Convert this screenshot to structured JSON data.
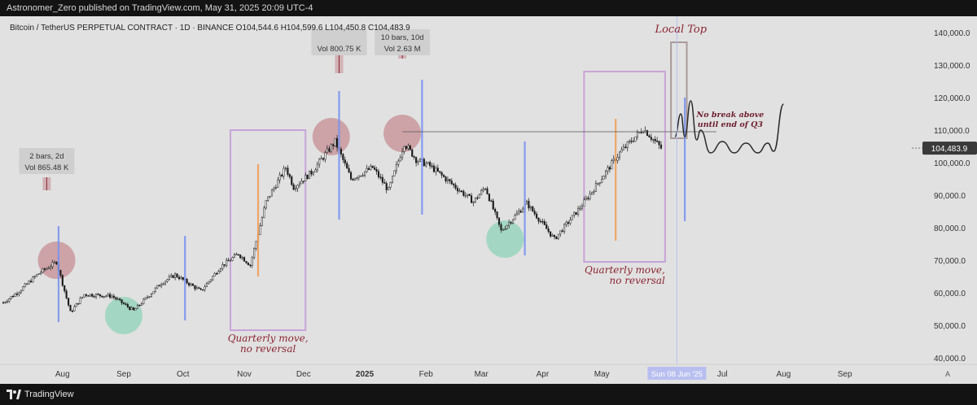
{
  "header": {
    "published": "Astronomer_Zero published on TradingView.com, May 31, 2025 20:09 UTC-4"
  },
  "footer": {
    "brand": "TradingView"
  },
  "chart_data": {
    "type": "candlestick",
    "title": "Bitcoin / TetherUS PERPETUAL CONTRACT · 1D · BINANCE",
    "ohlc": {
      "o": "O104,544.6",
      "h": "H104,599.6",
      "l": "L104,450.8",
      "c": "C104,483.9"
    },
    "last_price": 104483.9,
    "last_price_label": "104,483.9",
    "ylim": [
      38000,
      145000
    ],
    "y_ticks": [
      40000,
      50000,
      60000,
      70000,
      80000,
      90000,
      100000,
      110000,
      120000,
      130000,
      140000
    ],
    "y_tick_labels": [
      "40,000.0",
      "50,000.0",
      "60,000.0",
      "70,000.0",
      "80,000.0",
      "90,000.0",
      "100,000.0",
      "110,000.0",
      "120,000.0",
      "130,000.0",
      "140,000.0"
    ],
    "x_start": "2024-07-02",
    "x_end": "2025-10-07",
    "x_ticks": [
      {
        "date": "2024-08-01",
        "label": "Aug"
      },
      {
        "date": "2024-09-01",
        "label": "Sep"
      },
      {
        "date": "2024-10-01",
        "label": "Oct"
      },
      {
        "date": "2024-11-01",
        "label": "Nov"
      },
      {
        "date": "2024-12-01",
        "label": "Dec"
      },
      {
        "date": "2025-01-01",
        "label": "2025"
      },
      {
        "date": "2025-02-01",
        "label": "Feb"
      },
      {
        "date": "2025-03-01",
        "label": "Mar"
      },
      {
        "date": "2025-04-01",
        "label": "Apr"
      },
      {
        "date": "2025-05-01",
        "label": "May"
      },
      {
        "date": "2025-07-01",
        "label": "Jul"
      },
      {
        "date": "2025-08-01",
        "label": "Aug"
      },
      {
        "date": "2025-09-01",
        "label": "Sep"
      }
    ],
    "cursor_date": "2025-06-08",
    "cursor_label": "Sun 08 Jun '25",
    "price_path": [
      [
        "2024-07-02",
        57000
      ],
      [
        "2024-07-10",
        60500
      ],
      [
        "2024-07-20",
        66000
      ],
      [
        "2024-07-29",
        69500
      ],
      [
        "2024-08-05",
        54000
      ],
      [
        "2024-08-12",
        59500
      ],
      [
        "2024-08-26",
        59000
      ],
      [
        "2024-09-06",
        54500
      ],
      [
        "2024-09-20",
        63000
      ],
      [
        "2024-09-27",
        65500
      ],
      [
        "2024-10-10",
        60500
      ],
      [
        "2024-10-20",
        68000
      ],
      [
        "2024-10-29",
        72000
      ],
      [
        "2024-11-04",
        68500
      ],
      [
        "2024-11-12",
        88000
      ],
      [
        "2024-11-22",
        98500
      ],
      [
        "2024-11-26",
        92500
      ],
      [
        "2024-12-05",
        97000
      ],
      [
        "2024-12-17",
        106500
      ],
      [
        "2024-12-25",
        95000
      ],
      [
        "2025-01-05",
        98500
      ],
      [
        "2025-01-13",
        91500
      ],
      [
        "2025-01-21",
        106000
      ],
      [
        "2025-01-27",
        101000
      ],
      [
        "2025-02-03",
        99000
      ],
      [
        "2025-02-25",
        88000
      ],
      [
        "2025-03-03",
        92500
      ],
      [
        "2025-03-11",
        79000
      ],
      [
        "2025-03-24",
        87500
      ],
      [
        "2025-04-07",
        76500
      ],
      [
        "2025-04-21",
        87000
      ],
      [
        "2025-05-10",
        103000
      ],
      [
        "2025-05-22",
        110500
      ],
      [
        "2025-05-31",
        104483.9
      ]
    ],
    "projection_path": [
      [
        "2025-06-07",
        108000
      ],
      [
        "2025-06-10",
        115000
      ],
      [
        "2025-06-12",
        108000
      ],
      [
        "2025-06-15",
        119000
      ],
      [
        "2025-06-18",
        107000
      ],
      [
        "2025-06-20",
        110000
      ],
      [
        "2025-06-25",
        103000
      ],
      [
        "2025-07-01",
        106500
      ],
      [
        "2025-07-07",
        103000
      ],
      [
        "2025-07-13",
        106000
      ],
      [
        "2025-07-19",
        103000
      ],
      [
        "2025-07-24",
        106000
      ],
      [
        "2025-07-27",
        103500
      ],
      [
        "2025-08-01",
        118000
      ]
    ],
    "resistance_line": {
      "start": "2025-01-20",
      "end": "2025-06-28",
      "value": 109500
    },
    "circles": [
      {
        "date": "2024-07-29",
        "value": 70000,
        "color": "#c58d93"
      },
      {
        "date": "2024-09-01",
        "value": 53000,
        "color": "#8fd3b8"
      },
      {
        "date": "2024-12-15",
        "value": 108000,
        "color": "#c58d93"
      },
      {
        "date": "2025-01-20",
        "value": 109000,
        "color": "#c58d93"
      },
      {
        "date": "2025-03-13",
        "value": 76500,
        "color": "#8fd3b8"
      }
    ],
    "vlines": [
      {
        "date": "2024-07-30",
        "low": 51000,
        "high": 80500,
        "color": "#7b93f0"
      },
      {
        "date": "2024-10-02",
        "low": 51500,
        "high": 77500,
        "color": "#7b93f0"
      },
      {
        "date": "2024-11-08",
        "low": 65000,
        "high": 99500,
        "color": "#f0a05a"
      },
      {
        "date": "2024-12-19",
        "low": 82500,
        "high": 122000,
        "color": "#7b93f0"
      },
      {
        "date": "2025-01-30",
        "low": 84000,
        "high": 125500,
        "color": "#7b93f0"
      },
      {
        "date": "2025-03-23",
        "low": 71500,
        "high": 106500,
        "color": "#7b93f0"
      },
      {
        "date": "2025-05-08",
        "low": 76000,
        "high": 113500,
        "color": "#f0a05a"
      },
      {
        "date": "2025-06-12",
        "low": 82000,
        "high": 120000,
        "color": "#7b93f0"
      }
    ],
    "rects": [
      {
        "start": "2024-10-25",
        "end": "2024-12-02",
        "low": 48500,
        "high": 110000,
        "color": "#c9a3d8",
        "caption": [
          "Quarterly move,",
          "no reversal"
        ],
        "caption_align": "middle"
      },
      {
        "start": "2025-04-22",
        "end": "2025-06-02",
        "low": 69500,
        "high": 128000,
        "color": "#c9a3d8",
        "caption": [
          "Quarterly move,",
          "no reversal"
        ],
        "caption_align": "end"
      },
      {
        "start": "2025-06-05",
        "end": "2025-06-13",
        "low": 107500,
        "high": 137000,
        "color": "#a99a9a",
        "caption": [],
        "caption_align": "middle"
      }
    ],
    "range_markers": [
      {
        "date": "2024-07-24",
        "low": 91500,
        "high": 95500,
        "label_lines": [
          "2 bars, 2d",
          "Vol 865.48 K"
        ],
        "label_value": 103500
      },
      {
        "date": "2024-12-19",
        "low": 127500,
        "high": 137000,
        "label_lines": [
          "",
          "Vol 800.75 K"
        ],
        "label_value": 140000
      },
      {
        "date": "2025-01-20",
        "low": 132000,
        "high": 137000,
        "label_lines": [
          "10 bars, 10d",
          "Vol 2.63 M"
        ],
        "label_value": 140000
      }
    ],
    "annotations": [
      {
        "text": "Local Top",
        "date": "2025-06-10",
        "value": 140000,
        "color": "#8b2430",
        "bold": false
      },
      {
        "text": "No break above",
        "date": "2025-07-05",
        "value": 114000,
        "color": "#6f2030",
        "bold": true
      },
      {
        "text": "until end of Q3",
        "date": "2025-07-05",
        "value": 111000,
        "color": "#6f2030",
        "bold": true
      }
    ]
  }
}
